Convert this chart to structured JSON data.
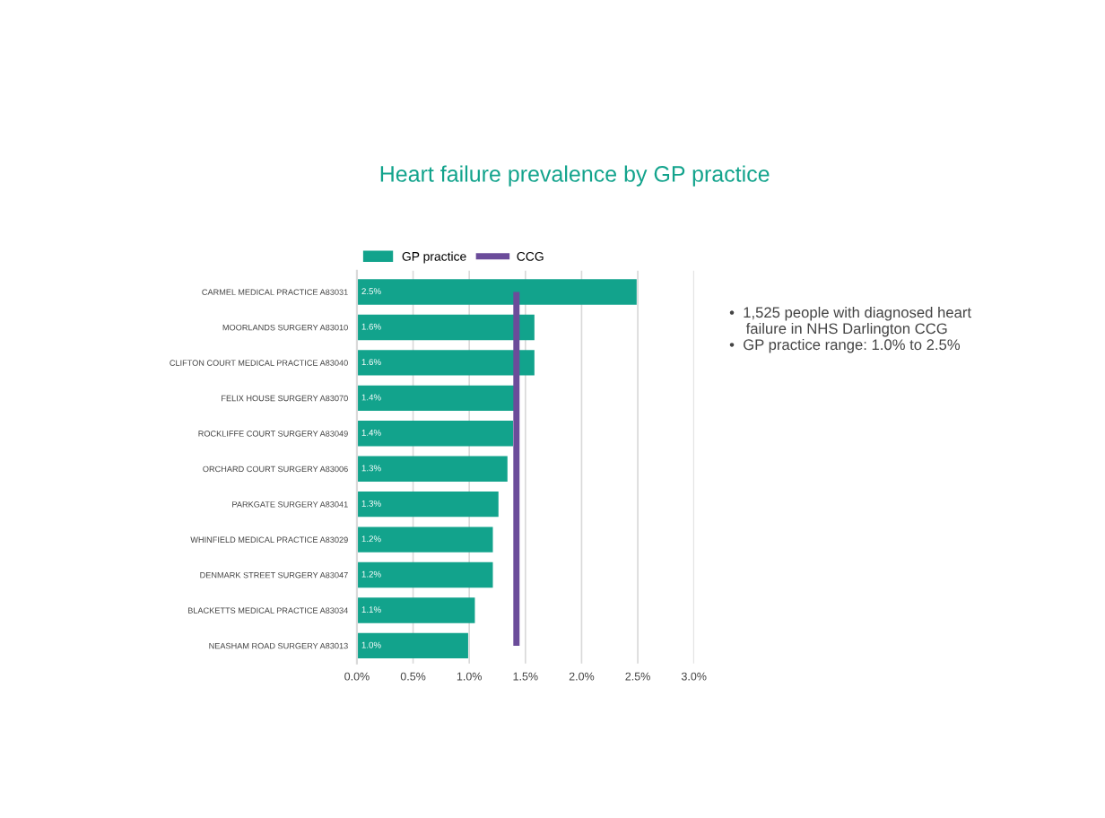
{
  "chart_data": {
    "type": "bar",
    "orientation": "horizontal",
    "title": "Heart failure prevalence by GP practice",
    "categories": [
      "CARMEL MEDICAL PRACTICE A83031",
      "MOORLANDS SURGERY A83010",
      "CLIFTON COURT MEDICAL PRACTICE A83040",
      "FELIX HOUSE SURGERY A83070",
      "ROCKLIFFE COURT SURGERY A83049",
      "ORCHARD COURT SURGERY A83006",
      "PARKGATE SURGERY A83041",
      "WHINFIELD MEDICAL PRACTICE A83029",
      "DENMARK STREET SURGERY A83047",
      "BLACKETTS MEDICAL PRACTICE A83034",
      "NEASHAM ROAD SURGERY A83013"
    ],
    "series": [
      {
        "name": "GP practice",
        "color": "#12a38c",
        "values": [
          2.49,
          1.58,
          1.58,
          1.42,
          1.39,
          1.34,
          1.26,
          1.21,
          1.21,
          1.05,
          0.99
        ],
        "value_labels": [
          "2.5%",
          "1.6%",
          "1.6%",
          "1.4%",
          "1.4%",
          "1.3%",
          "1.3%",
          "1.2%",
          "1.2%",
          "1.1%",
          "1.0%"
        ]
      }
    ],
    "ref_lines": [
      {
        "axis": "x",
        "value": 1.42,
        "label": "CCG",
        "color": "#6b4c9a"
      }
    ],
    "xlim": [
      0,
      3
    ],
    "xticks": [
      {
        "value": 0,
        "label": "0.0%"
      },
      {
        "value": 0.5,
        "label": "0.5%"
      },
      {
        "value": 1,
        "label": "1.0%"
      },
      {
        "value": 1.5,
        "label": "1.5%"
      },
      {
        "value": 2,
        "label": "2.0%"
      },
      {
        "value": 2.5,
        "label": "2.5%"
      },
      {
        "value": 3,
        "label": "3.0%"
      }
    ],
    "grid": "x",
    "legend": "top",
    "annotations": [
      "•  1,525 people with diagnosed heart\n    failure in NHS Darlington CCG\n•  GP practice range: 1.0% to 2.5%"
    ]
  }
}
